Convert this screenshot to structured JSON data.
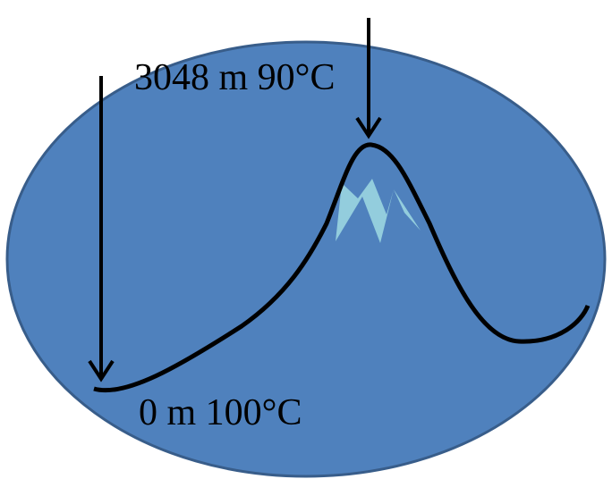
{
  "labels": {
    "summit": "3048 m 90°C",
    "base": "0 m 100°C"
  }
}
